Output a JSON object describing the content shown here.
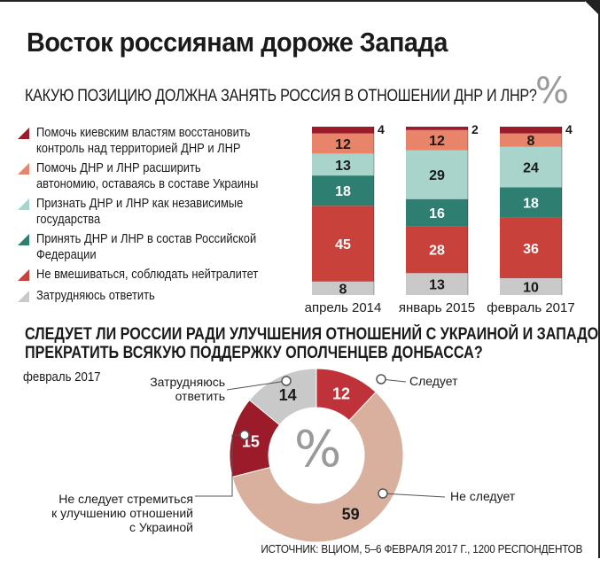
{
  "header": {
    "title": "Восток россиянам дороже Запада",
    "question1": "КАКУЮ ПОЗИЦИЮ ДОЛЖНА ЗАНЯТЬ РОССИЯ В ОТНОШЕНИИ ДНР И ЛНР?",
    "percent_sign": "%",
    "question2_line1": "СЛЕДУЕТ ЛИ РОССИИ РАДИ УЛУЧШЕНИЯ ОТНОШЕНИЙ С УКРАИНОЙ И ЗАПАДОМ",
    "question2_line2": "ПРЕКРАТИТЬ ВСЯКУЮ ПОДДЕРЖКУ ОПОЛЧЕНЦЕВ ДОНБАССА?",
    "date2": "февраль 2017",
    "source": "ИСТОЧНИК: ВЦИОМ, 5–6 ФЕВРАЛЯ 2017 Г., 1200 РЕСПОНДЕНТОВ"
  },
  "legend": [
    {
      "text": "Помочь киевским властям восстановить контроль над территорией ДНР и ЛНР",
      "color": "#9b1b2a"
    },
    {
      "text": "Помочь ДНР и ЛНР расширить автономию, оставаясь в составе Украины",
      "color": "#e8846a"
    },
    {
      "text": "Признать ДНР и ЛНР как независимые государства",
      "color": "#a8d4cc"
    },
    {
      "text": "Принять ДНР и ЛНР в состав Российской Федерации",
      "color": "#2e7f72"
    },
    {
      "text": "Не вмешиваться, соблюдать нейтралитет",
      "color": "#c8413b"
    },
    {
      "text": "Затрудняюсь ответить",
      "color": "#c9c9c9"
    }
  ],
  "chart_data": [
    {
      "type": "bar",
      "stacked": true,
      "title": "КАКУЮ ПОЗИЦИЮ ДОЛЖНА ЗАНЯТЬ РОССИЯ В ОТНОШЕНИИ ДНР И ЛНР?",
      "unit": "%",
      "categories": [
        "апрель 2014",
        "январь 2015",
        "февраль 2017"
      ],
      "series": [
        {
          "name": "Помочь киевским властям восстановить контроль над территорией ДНР и ЛНР",
          "values": [
            4,
            2,
            4
          ],
          "color": "#9b1b2a"
        },
        {
          "name": "Помочь ДНР и ЛНР расширить автономию, оставаясь в составе Украины",
          "values": [
            12,
            12,
            8
          ],
          "color": "#e8846a"
        },
        {
          "name": "Признать ДНР и ЛНР как независимые государства",
          "values": [
            13,
            29,
            24
          ],
          "color": "#a8d4cc"
        },
        {
          "name": "Принять ДНР и ЛНР в состав Российской Федерации",
          "values": [
            18,
            16,
            18
          ],
          "color": "#2e7f72"
        },
        {
          "name": "Не вмешиваться, соблюдать нейтралитет",
          "values": [
            45,
            28,
            36
          ],
          "color": "#c8413b"
        },
        {
          "name": "Затрудняюсь ответить",
          "values": [
            8,
            13,
            10
          ],
          "color": "#c9c9c9"
        }
      ]
    },
    {
      "type": "pie",
      "donut": true,
      "title": "СЛЕДУЕТ ЛИ РОССИИ РАДИ УЛУЧШЕНИЯ ОТНОШЕНИЙ С УКРАИНОЙ И ЗАПАДОМ ПРЕКРАТИТЬ ВСЯКУЮ ПОДДЕРЖКУ ОПОЛЧЕНЦЕВ ДОНБАССА?",
      "unit": "%",
      "slices": [
        {
          "label": "Следует",
          "value": 12,
          "color": "#c0323a"
        },
        {
          "label": "Не следует",
          "value": 59,
          "color": "#d9b09e"
        },
        {
          "label": "Не следует стремиться к улучшению отношений с Украиной",
          "value": 15,
          "color": "#9b1b2a"
        },
        {
          "label": "Затрудняюсь ответить",
          "value": 14,
          "color": "#c9c9c9"
        }
      ]
    }
  ]
}
